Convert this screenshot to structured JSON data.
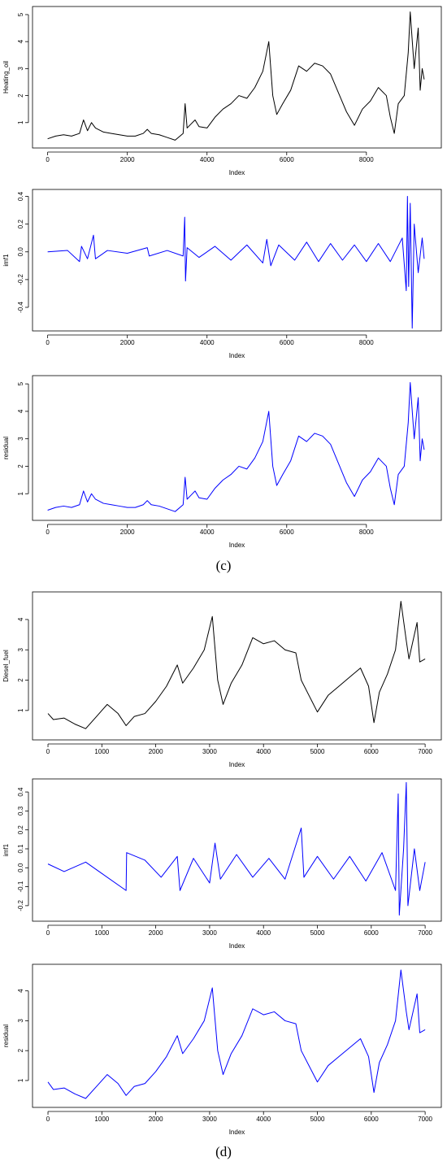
{
  "panel_labels": [
    "(c)",
    "(d)"
  ],
  "chart_data": [
    {
      "type": "line",
      "ylabel": "Heating_oil",
      "xlabel": "Index",
      "color": "#000000",
      "xlim": [
        -380,
        9880
      ],
      "ylim": [
        0.06,
        5.3
      ],
      "xticks": [
        0,
        2000,
        4000,
        6000,
        8000
      ],
      "yticks": [
        1,
        2,
        3,
        4,
        5
      ],
      "x": [
        0,
        200,
        400,
        600,
        800,
        900,
        1000,
        1100,
        1200,
        1400,
        1600,
        1800,
        2000,
        2200,
        2400,
        2500,
        2600,
        2800,
        3000,
        3200,
        3400,
        3450,
        3500,
        3600,
        3700,
        3800,
        4000,
        4200,
        4400,
        4600,
        4800,
        5000,
        5200,
        5400,
        5550,
        5650,
        5750,
        5900,
        6100,
        6300,
        6500,
        6700,
        6900,
        7100,
        7300,
        7500,
        7700,
        7900,
        8100,
        8300,
        8500,
        8600,
        8700,
        8800,
        8950,
        9050,
        9100,
        9200,
        9300,
        9350,
        9400,
        9450
      ],
      "values": [
        0.4,
        0.5,
        0.55,
        0.5,
        0.6,
        1.1,
        0.7,
        1.0,
        0.8,
        0.65,
        0.6,
        0.55,
        0.5,
        0.5,
        0.6,
        0.75,
        0.6,
        0.55,
        0.45,
        0.35,
        0.6,
        1.7,
        0.8,
        0.95,
        1.1,
        0.85,
        0.8,
        1.2,
        1.5,
        1.7,
        2.0,
        1.9,
        2.3,
        2.9,
        4.0,
        2.0,
        1.3,
        1.7,
        2.2,
        3.1,
        2.9,
        3.2,
        3.1,
        2.8,
        2.1,
        1.4,
        0.9,
        1.5,
        1.8,
        2.3,
        2.0,
        1.2,
        0.6,
        1.7,
        2.0,
        3.6,
        5.1,
        3.0,
        4.5,
        2.2,
        3.0,
        2.6
      ]
    },
    {
      "type": "line",
      "ylabel": "imf1",
      "xlabel": "Index",
      "color": "#0000ff",
      "xlim": [
        -380,
        9880
      ],
      "ylim": [
        -0.57,
        0.45
      ],
      "xticks": [
        0,
        2000,
        4000,
        6000,
        8000
      ],
      "yticks": [
        -0.4,
        -0.2,
        {
          "value": 0,
          "label": "0.0"
        },
        0.2,
        0.4
      ],
      "x": [
        0,
        500,
        800,
        850,
        1000,
        1150,
        1200,
        1500,
        2000,
        2500,
        2550,
        3000,
        3400,
        3440,
        3460,
        3500,
        3800,
        4200,
        4600,
        5000,
        5400,
        5500,
        5600,
        5800,
        6200,
        6500,
        6800,
        7100,
        7400,
        7700,
        8000,
        8300,
        8600,
        8900,
        9000,
        9030,
        9060,
        9100,
        9150,
        9200,
        9300,
        9400,
        9450
      ],
      "values": [
        0,
        0.01,
        -0.07,
        0.04,
        -0.05,
        0.12,
        -0.05,
        0.01,
        -0.01,
        0.03,
        -0.03,
        0.01,
        -0.03,
        0.25,
        -0.21,
        0.03,
        -0.04,
        0.04,
        -0.06,
        0.05,
        -0.08,
        0.09,
        -0.1,
        0.05,
        -0.06,
        0.07,
        -0.07,
        0.06,
        -0.06,
        0.05,
        -0.07,
        0.06,
        -0.07,
        0.1,
        -0.28,
        0.4,
        -0.25,
        0.35,
        -0.55,
        0.2,
        -0.15,
        0.1,
        -0.05
      ]
    },
    {
      "type": "line",
      "ylabel": "residual",
      "xlabel": "Index",
      "color": "#0000ff",
      "xlim": [
        -380,
        9880
      ],
      "ylim": [
        0.03,
        5.3
      ],
      "xticks": [
        0,
        2000,
        4000,
        6000,
        8000
      ],
      "yticks": [
        1,
        2,
        3,
        4,
        5
      ],
      "x": [
        0,
        200,
        400,
        600,
        800,
        900,
        1000,
        1100,
        1200,
        1400,
        1600,
        1800,
        2000,
        2200,
        2400,
        2500,
        2600,
        2800,
        3000,
        3200,
        3400,
        3450,
        3500,
        3600,
        3700,
        3800,
        4000,
        4200,
        4400,
        4600,
        4800,
        5000,
        5200,
        5400,
        5550,
        5650,
        5750,
        5900,
        6100,
        6300,
        6500,
        6700,
        6900,
        7100,
        7300,
        7500,
        7700,
        7900,
        8100,
        8300,
        8500,
        8600,
        8700,
        8800,
        8950,
        9050,
        9100,
        9200,
        9300,
        9350,
        9400,
        9450
      ],
      "values": [
        0.4,
        0.5,
        0.55,
        0.5,
        0.6,
        1.1,
        0.7,
        1.0,
        0.8,
        0.65,
        0.6,
        0.55,
        0.5,
        0.5,
        0.6,
        0.75,
        0.6,
        0.55,
        0.45,
        0.35,
        0.6,
        1.6,
        0.8,
        0.95,
        1.1,
        0.85,
        0.8,
        1.2,
        1.5,
        1.7,
        2.0,
        1.9,
        2.3,
        2.9,
        4.0,
        2.0,
        1.3,
        1.7,
        2.2,
        3.1,
        2.9,
        3.2,
        3.1,
        2.8,
        2.1,
        1.4,
        0.9,
        1.5,
        1.8,
        2.3,
        2.0,
        1.2,
        0.6,
        1.7,
        2.0,
        3.6,
        5.05,
        3.0,
        4.5,
        2.2,
        3.0,
        2.6
      ]
    },
    {
      "type": "line",
      "ylabel": "Diesel_fuel",
      "xlabel": "Index",
      "color": "#000000",
      "xlim": [
        -287,
        7300
      ],
      "ylim": [
        0.03,
        4.91
      ],
      "xticks": [
        0,
        1000,
        2000,
        3000,
        4000,
        5000,
        6000,
        7000
      ],
      "yticks": [
        1,
        2,
        3,
        4
      ],
      "x": [
        0,
        100,
        300,
        500,
        700,
        900,
        1100,
        1300,
        1450,
        1600,
        1800,
        2000,
        2200,
        2400,
        2500,
        2700,
        2900,
        3050,
        3150,
        3250,
        3400,
        3600,
        3800,
        4000,
        4200,
        4400,
        4600,
        4700,
        4900,
        5000,
        5200,
        5400,
        5600,
        5800,
        5950,
        6050,
        6150,
        6300,
        6450,
        6550,
        6650,
        6700,
        6850,
        6900,
        7000
      ],
      "values": [
        0.9,
        0.7,
        0.75,
        0.55,
        0.4,
        0.8,
        1.2,
        0.9,
        0.5,
        0.8,
        0.9,
        1.3,
        1.8,
        2.5,
        1.9,
        2.4,
        3.0,
        4.1,
        2.0,
        1.2,
        1.9,
        2.5,
        3.4,
        3.2,
        3.3,
        3.0,
        2.9,
        2.0,
        1.3,
        0.95,
        1.5,
        1.8,
        2.1,
        2.4,
        1.8,
        0.6,
        1.6,
        2.2,
        3.0,
        4.6,
        3.3,
        2.7,
        3.9,
        2.6,
        2.7
      ]
    },
    {
      "type": "line",
      "ylabel": "imf1",
      "xlabel": "Index",
      "color": "#0000ff",
      "xlim": [
        -287,
        7300
      ],
      "ylim": [
        -0.282,
        0.469
      ],
      "xticks": [
        0,
        1000,
        2000,
        3000,
        4000,
        5000,
        6000,
        7000
      ],
      "yticks": [
        -0.2,
        -0.1,
        {
          "value": 0,
          "label": "0.0"
        },
        0.1,
        0.2,
        0.3,
        0.4
      ],
      "x": [
        0,
        300,
        700,
        1000,
        1450,
        1460,
        1800,
        2100,
        2400,
        2450,
        2700,
        3000,
        3100,
        3200,
        3500,
        3800,
        4100,
        4400,
        4700,
        4750,
        5000,
        5300,
        5600,
        5900,
        6200,
        6450,
        6500,
        6520,
        6600,
        6650,
        6680,
        6800,
        6900,
        7000
      ],
      "values": [
        0.02,
        -0.02,
        0.03,
        -0.03,
        -0.12,
        0.08,
        0.04,
        -0.05,
        0.06,
        -0.12,
        0.05,
        -0.08,
        0.13,
        -0.06,
        0.07,
        -0.05,
        0.05,
        -0.06,
        0.21,
        -0.05,
        0.06,
        -0.06,
        0.06,
        -0.07,
        0.08,
        -0.12,
        0.39,
        -0.25,
        0.1,
        0.45,
        -0.2,
        0.1,
        -0.12,
        0.03
      ]
    },
    {
      "type": "line",
      "ylabel": "residual",
      "xlabel": "Index",
      "color": "#0000ff",
      "xlim": [
        -287,
        7300
      ],
      "ylim": [
        0.1,
        4.89
      ],
      "xticks": [
        0,
        1000,
        2000,
        3000,
        4000,
        5000,
        6000,
        7000
      ],
      "yticks": [
        1,
        2,
        3,
        4
      ],
      "x": [
        0,
        100,
        300,
        500,
        700,
        900,
        1100,
        1300,
        1450,
        1600,
        1800,
        2000,
        2200,
        2400,
        2500,
        2700,
        2900,
        3050,
        3150,
        3250,
        3400,
        3600,
        3800,
        4000,
        4200,
        4400,
        4600,
        4700,
        4900,
        5000,
        5200,
        5400,
        5600,
        5800,
        5950,
        6050,
        6150,
        6300,
        6450,
        6550,
        6650,
        6700,
        6850,
        6900,
        7000
      ],
      "values": [
        0.95,
        0.7,
        0.75,
        0.55,
        0.4,
        0.8,
        1.2,
        0.9,
        0.5,
        0.8,
        0.9,
        1.3,
        1.8,
        2.5,
        1.9,
        2.4,
        3.0,
        4.1,
        2.0,
        1.2,
        1.9,
        2.5,
        3.4,
        3.2,
        3.3,
        3.0,
        2.9,
        2.0,
        1.3,
        0.95,
        1.5,
        1.8,
        2.1,
        2.4,
        1.8,
        0.6,
        1.6,
        2.2,
        3.0,
        4.7,
        3.3,
        2.7,
        3.9,
        2.6,
        2.7
      ]
    }
  ]
}
